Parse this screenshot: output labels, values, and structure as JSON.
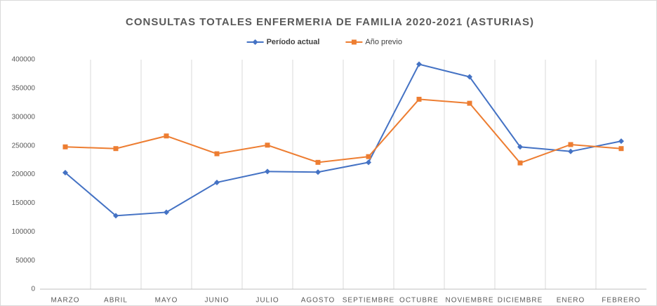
{
  "chart_data": {
    "type": "line",
    "title": "CONSULTAS TOTALES ENFERMERIA DE FAMILIA 2020-2021 (ASTURIAS)",
    "categories": [
      "MARZO",
      "ABRIL",
      "MAYO",
      "JUNIO",
      "JULIO",
      "AGOSTO",
      "SEPTIEMBRE",
      "OCTUBRE",
      "NOVIEMBRE",
      "DICIEMBRE",
      "ENERO",
      "FEBRERO"
    ],
    "series": [
      {
        "name": "Período actual",
        "color": "#4472c4",
        "marker": "diamond",
        "values": [
          203000,
          128000,
          134000,
          186000,
          205000,
          204000,
          221000,
          392000,
          370000,
          248000,
          240000,
          258000
        ]
      },
      {
        "name": "Año previo",
        "color": "#ed7d31",
        "marker": "square",
        "values": [
          248000,
          245000,
          267000,
          236000,
          251000,
          221000,
          231000,
          331000,
          324000,
          220000,
          252000,
          245000
        ]
      }
    ],
    "ylim": [
      0,
      400000
    ],
    "yticks": [
      0,
      50000,
      100000,
      150000,
      200000,
      250000,
      300000,
      350000,
      400000
    ],
    "grid": "vertical-category",
    "legend": "top"
  }
}
